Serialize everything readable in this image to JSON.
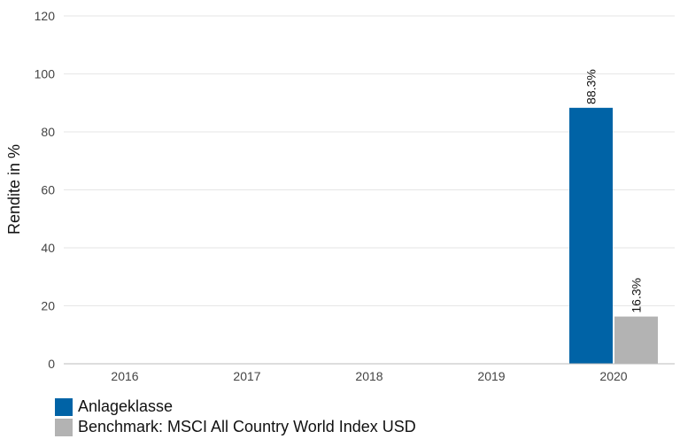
{
  "chart_data": {
    "type": "bar",
    "categories": [
      "2016",
      "2017",
      "2018",
      "2019",
      "2020"
    ],
    "series": [
      {
        "name": "Anlageklasse",
        "color": "#0063a6",
        "values": [
          null,
          null,
          null,
          null,
          88.3
        ],
        "labels": [
          "",
          "",
          "",
          "",
          "88.3%"
        ]
      },
      {
        "name": "Benchmark: MSCI All Country World Index USD",
        "color": "#b3b3b3",
        "values": [
          null,
          null,
          null,
          null,
          16.3
        ],
        "labels": [
          "",
          "",
          "",
          "",
          "16.3%"
        ]
      }
    ],
    "ylabel": "Rendite in %",
    "ylim": [
      0,
      120
    ],
    "yticks": [
      "0",
      "20",
      "40",
      "60",
      "80",
      "100",
      "120"
    ],
    "grid": true,
    "legend": "bottom-left"
  }
}
